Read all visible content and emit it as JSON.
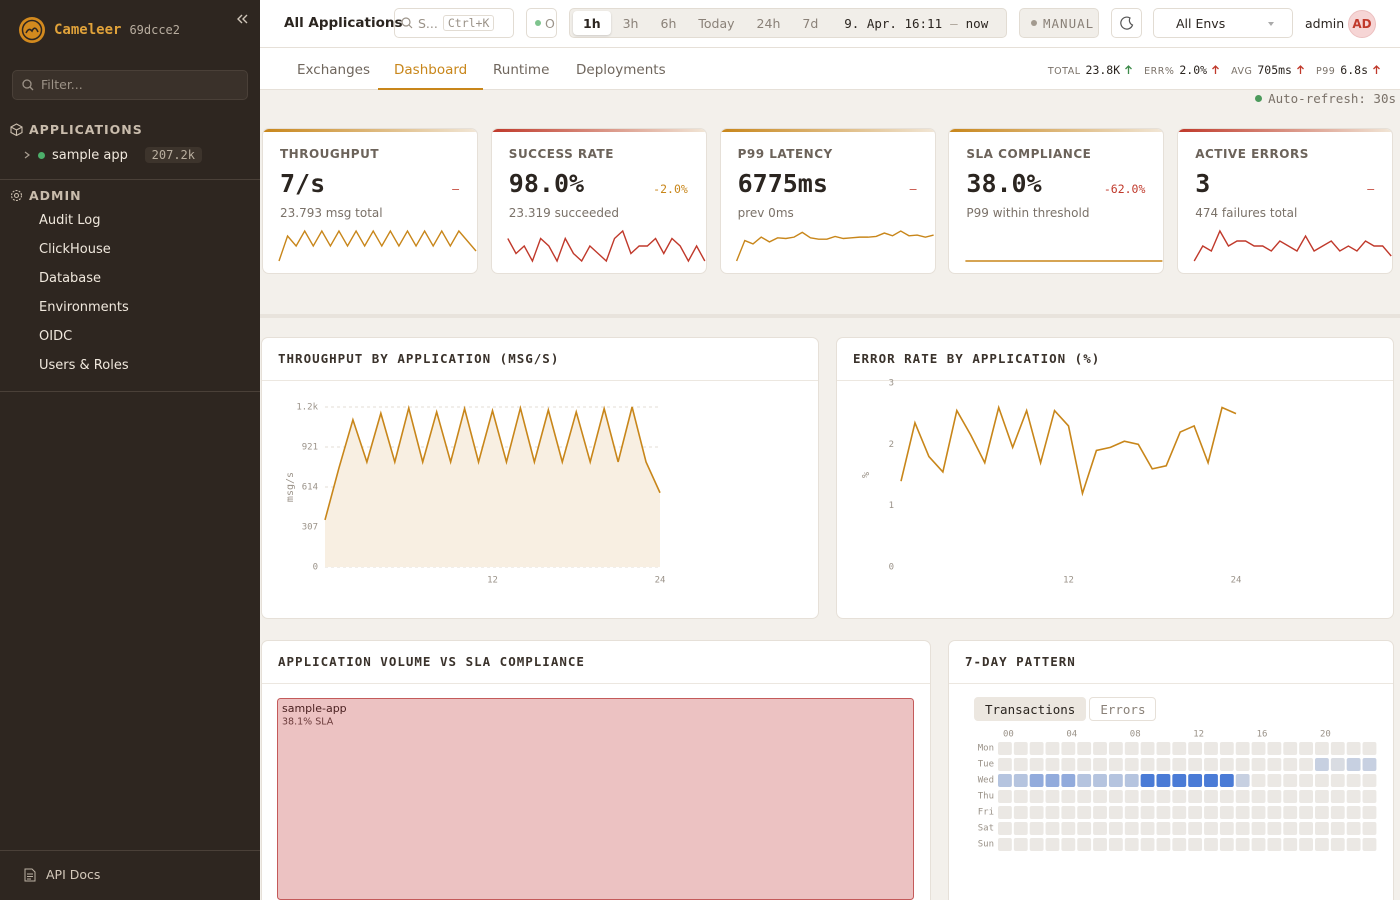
{
  "sidebar": {
    "brand": "Cameleer",
    "version": "69dcce2",
    "filter_placeholder": "Filter...",
    "sections": [
      {
        "title": "APPLICATIONS",
        "items": [
          {
            "label": "sample app",
            "count": "207.2k"
          }
        ]
      },
      {
        "title": "ADMIN",
        "items": [
          {
            "label": "Audit Log"
          },
          {
            "label": "ClickHouse"
          },
          {
            "label": "Database"
          },
          {
            "label": "Environments"
          },
          {
            "label": "OIDC"
          },
          {
            "label": "Users & Roles"
          }
        ]
      }
    ],
    "footer": "API Docs"
  },
  "topbar": {
    "scope": "All Applications",
    "search": "S...",
    "shortcut": "Ctrl+K",
    "status": "O",
    "ranges": [
      {
        "label": "1h",
        "active": true
      },
      {
        "label": "3h"
      },
      {
        "label": "6h"
      },
      {
        "label": "Today"
      },
      {
        "label": "24h"
      },
      {
        "label": "7d"
      }
    ],
    "from": "9. Apr. 16:11",
    "separator": "–",
    "to": "now",
    "refresh_mode": "MANUAL",
    "env": "All Envs",
    "user": "admin",
    "avatar": "AD"
  },
  "tabs": [
    {
      "label": "Exchanges"
    },
    {
      "label": "Dashboard",
      "active": true
    },
    {
      "label": "Runtime"
    },
    {
      "label": "Deployments"
    }
  ],
  "stats": [
    {
      "label": "TOTAL",
      "value": "23.8K",
      "color": "#3d8b4a"
    },
    {
      "label": "ERR%",
      "value": "2.0%",
      "color": "#c0392b"
    },
    {
      "label": "AVG",
      "value": "705ms",
      "color": "#c0392b"
    },
    {
      "label": "P99",
      "value": "6.8s",
      "color": "#c0392b"
    }
  ],
  "auto_refresh": "Auto-refresh: 30s",
  "kpis": [
    {
      "label": "THROUGHPUT",
      "value": "7/s",
      "delta": "–",
      "delta_color": "#c0392b",
      "subtitle": "23.793 msg total",
      "accent": "#c8861a",
      "line_color": "#c8861a",
      "spark": [
        1,
        6,
        4,
        7,
        4,
        7,
        4,
        7,
        4,
        7,
        4,
        7,
        4,
        7,
        4,
        7,
        4,
        7,
        4,
        7,
        4,
        7,
        5,
        3
      ]
    },
    {
      "label": "SUCCESS RATE",
      "value": "98.0%",
      "delta": "-2.0%",
      "delta_color": "#c8861a",
      "subtitle": "23.319 succeeded",
      "accent": "#c0392b",
      "line_color": "#c0392b",
      "spark": [
        99,
        97,
        98,
        96,
        99,
        98,
        96,
        99,
        97,
        96,
        98,
        97,
        96,
        99,
        100,
        97,
        98,
        98,
        99,
        97,
        99,
        98,
        96,
        98,
        96
      ]
    },
    {
      "label": "P99 LATENCY",
      "value": "6775ms",
      "delta": "–",
      "delta_color": "#c0392b",
      "subtitle": "prev 0ms",
      "accent": "#c8861a",
      "line_color": "#c8861a",
      "spark": [
        4000,
        7000,
        6500,
        7500,
        6800,
        7400,
        7300,
        7500,
        8200,
        7400,
        7200,
        7200,
        7600,
        7300,
        7400,
        7500,
        7500,
        7600,
        8100,
        7700,
        8400,
        7700,
        7800,
        7500,
        7800
      ]
    },
    {
      "label": "SLA COMPLIANCE",
      "value": "38.0%",
      "delta": "-62.0%",
      "delta_color": "#c0392b",
      "subtitle": "P99 within threshold",
      "accent": "#c8861a",
      "line_color": "#c8861a",
      "spark": [
        38,
        38,
        38,
        38,
        38,
        38,
        38,
        38,
        38,
        38
      ]
    },
    {
      "label": "ACTIVE ERRORS",
      "value": "3",
      "delta": "–",
      "delta_color": "#c0392b",
      "subtitle": "474 failures total",
      "accent": "#c0392b",
      "line_color": "#c0392b",
      "spark": [
        2,
        5,
        4,
        8,
        5,
        6,
        6,
        5,
        5,
        4,
        6,
        5,
        4,
        7,
        4,
        5,
        6,
        4,
        5,
        4,
        6,
        5,
        5,
        3
      ]
    }
  ],
  "chart_data": [
    {
      "type": "line",
      "title": "THROUGHPUT BY APPLICATION (MSG/S)",
      "y_label": "msg/s",
      "color": "#c8861a",
      "area": true,
      "area_color": "#f8efe2",
      "grid": true,
      "x": [
        0,
        1,
        2,
        3,
        4,
        5,
        6,
        7,
        8,
        9,
        10,
        11,
        12,
        13,
        14,
        15,
        16,
        17,
        18,
        19,
        20,
        21,
        22,
        23,
        24
      ],
      "values": [
        361,
        760,
        1130,
        806,
        1180,
        806,
        1220,
        806,
        1190,
        806,
        1215,
        806,
        1200,
        806,
        1220,
        806,
        1205,
        806,
        1190,
        806,
        1215,
        806,
        1228,
        806,
        570
      ],
      "xlim": [
        0,
        24
      ],
      "xticks": [
        12,
        24
      ],
      "ylim": [
        0,
        1228
      ],
      "yticks": [
        0,
        307,
        614,
        921,
        {
          "value": 1228,
          "label": "1.2k"
        }
      ]
    },
    {
      "type": "line",
      "title": "ERROR RATE BY APPLICATION (%)",
      "y_label": "%",
      "color": "#c8861a",
      "area": false,
      "grid": false,
      "x": [
        0,
        1,
        2,
        3,
        4,
        5,
        6,
        7,
        8,
        9,
        10,
        11,
        12,
        13,
        14,
        15,
        16,
        17,
        18,
        19,
        20,
        21,
        22,
        23,
        24
      ],
      "values": [
        1.4,
        2.35,
        1.8,
        1.55,
        2.55,
        2.15,
        1.7,
        2.6,
        1.95,
        2.55,
        1.7,
        2.55,
        2.3,
        1.2,
        1.9,
        1.95,
        2.05,
        2.0,
        1.6,
        1.65,
        2.2,
        2.3,
        1.7,
        2.6,
        2.5
      ],
      "xlim": [
        0,
        24
      ],
      "xticks": [
        12,
        24
      ],
      "ylim": [
        0,
        3
      ],
      "yticks": [
        0,
        1,
        2,
        3
      ]
    },
    {
      "type": "treemap",
      "title": "APPLICATION VOLUME VS SLA COMPLIANCE",
      "categories": [
        "sample-app"
      ],
      "values": [
        38.1
      ],
      "value_labels": [
        "38.1% SLA"
      ],
      "color": "#ecc2c2",
      "border_color": "#c45a5a"
    },
    {
      "type": "heatmap",
      "title": "7-DAY PATTERN",
      "tabs": [
        {
          "label": "Transactions",
          "active": true
        },
        {
          "label": "Errors"
        }
      ],
      "x": [
        "00",
        null,
        null,
        null,
        "04",
        null,
        null,
        null,
        "08",
        null,
        null,
        null,
        "12",
        null,
        null,
        null,
        "16",
        null,
        null,
        null,
        "20",
        null,
        null,
        null
      ],
      "y": [
        "Mon",
        "Tue",
        "Wed",
        "Thu",
        "Fri",
        "Sat",
        "Sun"
      ],
      "colors": [
        "#ebe8e4",
        "#4a7bd6"
      ],
      "values": [
        [
          0,
          0,
          0,
          0,
          0,
          0,
          0,
          0,
          0,
          0,
          0,
          0,
          0,
          0,
          0,
          0,
          0,
          0,
          0,
          0,
          0,
          0,
          0,
          0
        ],
        [
          0,
          0,
          0,
          0,
          0,
          0,
          0,
          0,
          0,
          0,
          0,
          0,
          0,
          0,
          0,
          0,
          0,
          0,
          0,
          0,
          2,
          1,
          2,
          2
        ],
        [
          3,
          3,
          5,
          5,
          5,
          3,
          3,
          3,
          3,
          9,
          9,
          9,
          9,
          9,
          9,
          2,
          0,
          0,
          0,
          0,
          0,
          0,
          0,
          0
        ],
        [
          0,
          0,
          0,
          0,
          0,
          0,
          0,
          0,
          0,
          0,
          0,
          0,
          0,
          0,
          0,
          0,
          0,
          0,
          0,
          0,
          0,
          0,
          0,
          0
        ],
        [
          0,
          0,
          0,
          0,
          0,
          0,
          0,
          0,
          0,
          0,
          0,
          0,
          0,
          0,
          0,
          0,
          0,
          0,
          0,
          0,
          0,
          0,
          0,
          0
        ],
        [
          0,
          0,
          0,
          0,
          0,
          0,
          0,
          0,
          0,
          0,
          0,
          0,
          0,
          0,
          0,
          0,
          0,
          0,
          0,
          0,
          0,
          0,
          0,
          0
        ],
        [
          0,
          0,
          0,
          0,
          0,
          0,
          0,
          0,
          0,
          0,
          0,
          0,
          0,
          0,
          0,
          0,
          0,
          0,
          0,
          0,
          0,
          0,
          0,
          0
        ]
      ]
    }
  ]
}
